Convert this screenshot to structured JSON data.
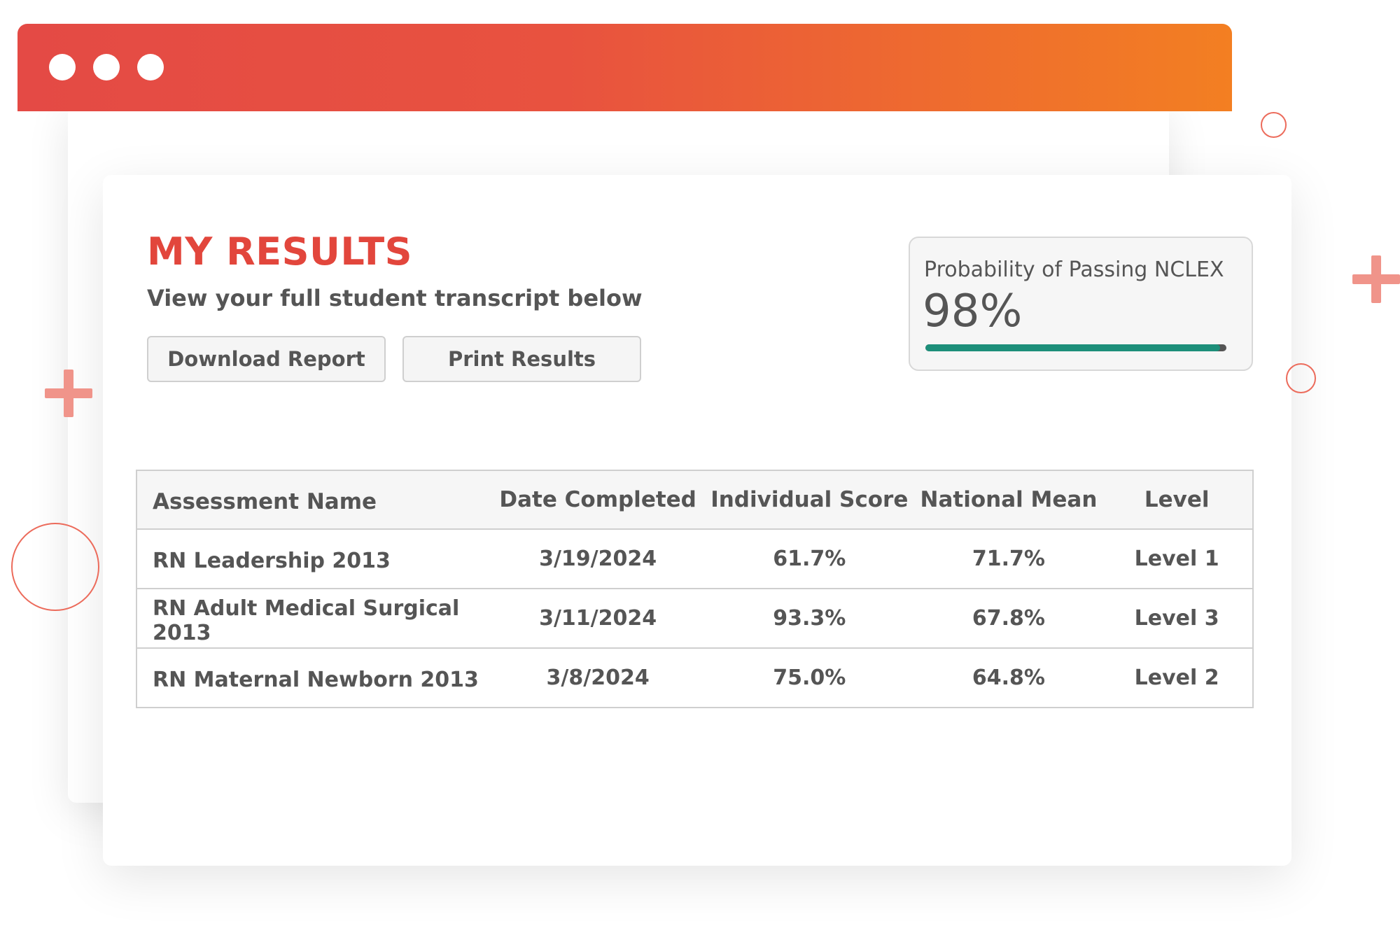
{
  "window": {
    "controls": [
      "window-dot",
      "window-dot",
      "window-dot"
    ]
  },
  "page": {
    "title": "MY RESULTS",
    "subtitle": "View your full student transcript below"
  },
  "actions": {
    "download_label": "Download Report",
    "print_label": "Print Results"
  },
  "nclex": {
    "label": "Probability of Passing NCLEX",
    "value": "98%",
    "progress_fraction": 0.98,
    "fill_color": "#1d8f7a",
    "track_color": "#555555"
  },
  "table": {
    "headers": [
      "Assessment Name",
      "Date Completed",
      "Individual Score",
      "National Mean",
      "Level"
    ],
    "rows": [
      [
        "RN Leadership 2013",
        "3/19/2024",
        "61.7%",
        "71.7%",
        "Level 1"
      ],
      [
        "RN Adult Medical Surgical 2013",
        "3/11/2024",
        "93.3%",
        "67.8%",
        "Level 3"
      ],
      [
        "RN Maternal Newborn 2013",
        "3/8/2024",
        "75.0%",
        "64.8%",
        "Level 2"
      ]
    ]
  },
  "colors": {
    "accent_red": "#e2463c",
    "gradient_start": "#e44a45",
    "gradient_end": "#f37f22",
    "text_gray": "#555555",
    "decor_pink": "#f0948a"
  }
}
